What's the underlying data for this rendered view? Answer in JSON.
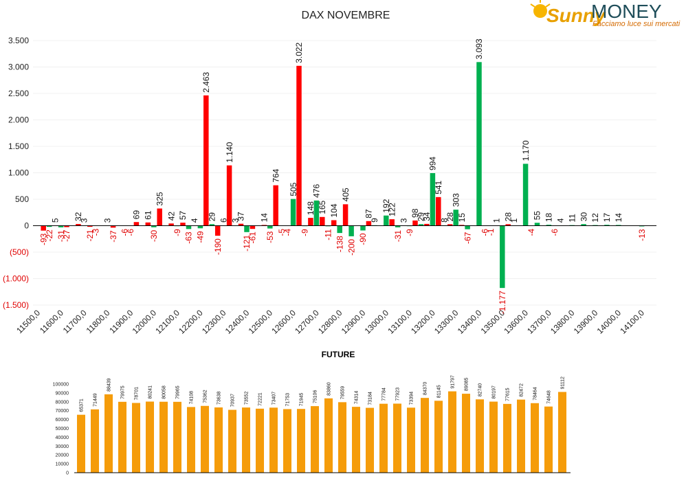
{
  "logo": {
    "brand_a": "Sunny",
    "brand_b": "MONEY",
    "tagline": "Facciamo luce sui mercati"
  },
  "chart_data": [
    {
      "type": "bar",
      "title": "DAX NOVEMBRE",
      "categories": [
        "11500,0",
        null,
        "11600,0",
        null,
        "11700,0",
        null,
        "11800,0",
        null,
        "11900,0",
        null,
        "12000,0",
        null,
        "12100,0",
        null,
        "12200,0",
        null,
        "12300,0",
        null,
        "12400,0",
        null,
        "12500,0",
        null,
        "12600,0",
        null,
        "12700,0",
        null,
        "12800,0",
        null,
        "12900,0",
        null,
        "13000,0",
        null,
        "13100,0",
        null,
        "13200,0",
        null,
        "13300,0",
        null,
        "13400,0",
        null,
        "13500,0",
        null,
        "13600,0",
        null,
        "13700,0",
        null,
        "13800,0",
        null,
        "13900,0",
        null,
        "14000,0",
        null,
        "14100,0"
      ],
      "series": [
        {
          "color": "#00b050",
          "values": [
            null,
            -22,
            -31,
            null,
            3,
            -3,
            3,
            null,
            -6,
            null,
            -30,
            null,
            -9,
            -63,
            -49,
            29,
            6,
            3,
            -121,
            null,
            -53,
            -5,
            505,
            -9,
            476,
            -11,
            -138,
            -200,
            -90,
            9,
            192,
            -31,
            -9,
            29,
            994,
            8,
            303,
            -67,
            3093,
            -1,
            -1177,
            1,
            1170,
            55,
            18,
            4,
            11,
            30,
            12,
            17,
            14,
            null,
            -13
          ],
          "value_labels": [
            null,
            "-22",
            "-31",
            null,
            "3",
            "-3",
            "3",
            null,
            "-6",
            null,
            "-30",
            null,
            "-9",
            "-63",
            "-49",
            "29",
            "6",
            "3",
            "-121",
            null,
            "-53",
            "-5",
            "505",
            "-9",
            "476",
            "-11",
            "-138",
            "-200",
            "-90",
            "9",
            "192",
            "-31",
            "-9",
            "29",
            "994",
            "8",
            "303",
            "-67",
            "3.093",
            "-1",
            "-1.177",
            "1",
            "1.170",
            "55",
            "18",
            "4",
            "11",
            "30",
            "12",
            "17",
            "14",
            null,
            "-13"
          ]
        },
        {
          "color": "#ff0000",
          "values": [
            -93,
            5,
            -27,
            32,
            -21,
            null,
            -37,
            -6,
            69,
            61,
            325,
            42,
            57,
            4,
            2463,
            -190,
            1140,
            37,
            -61,
            14,
            764,
            -4,
            3022,
            148,
            165,
            104,
            405,
            null,
            87,
            null,
            122,
            3,
            98,
            34,
            541,
            28,
            15,
            null,
            -6,
            1,
            28,
            null,
            -4,
            null,
            -6,
            null,
            null,
            null,
            null,
            null,
            null,
            null,
            null
          ],
          "value_labels": [
            "-93",
            "5",
            "-27",
            "32",
            "-21",
            null,
            "-37",
            "-6",
            "69",
            "61",
            "325",
            "42",
            "57",
            "4",
            "2.463",
            "-190",
            "1.140",
            "37",
            "-61",
            "14",
            "764",
            "-4",
            "3.022",
            "148",
            "165",
            "104",
            "405",
            null,
            "87",
            null,
            "122",
            "3",
            "98",
            "34",
            "541",
            "28",
            "15",
            null,
            "-6",
            "1",
            "28",
            null,
            "-4",
            null,
            "-6",
            null,
            null,
            null,
            null,
            null,
            null,
            null,
            null
          ]
        }
      ],
      "ylim": [
        -1500,
        3500
      ],
      "yticks": [
        {
          "value": -1500,
          "label": "(1.500)"
        },
        {
          "value": -1000,
          "label": "(1.000)"
        },
        {
          "value": -500,
          "label": "(500)"
        },
        0,
        500,
        {
          "value": 1000,
          "label": "1.000"
        },
        {
          "value": 1500,
          "label": "1.500"
        },
        {
          "value": 2000,
          "label": "2.000"
        },
        {
          "value": 2500,
          "label": "2.500"
        },
        {
          "value": 3000,
          "label": "3.000"
        },
        {
          "value": 3500,
          "label": "3.500"
        }
      ],
      "grid": true,
      "negative_color": "#e00000"
    },
    {
      "type": "bar",
      "title": "FUTURE",
      "color": "#f59c0a",
      "values": [
        65371,
        71449,
        88439,
        79975,
        78701,
        80241,
        80058,
        79965,
        74108,
        75362,
        73638,
        70937,
        73552,
        72221,
        73407,
        71753,
        71945,
        75106,
        83860,
        79559,
        74314,
        73184,
        77784,
        77923,
        73394,
        84370,
        81145,
        91797,
        89085,
        82740,
        80197,
        77615,
        82472,
        78464,
        74648,
        91112
      ],
      "ylim": [
        0,
        100000
      ],
      "yticks": [
        0,
        10000,
        20000,
        30000,
        40000,
        50000,
        60000,
        70000,
        80000,
        90000,
        100000
      ],
      "grid": false
    }
  ]
}
